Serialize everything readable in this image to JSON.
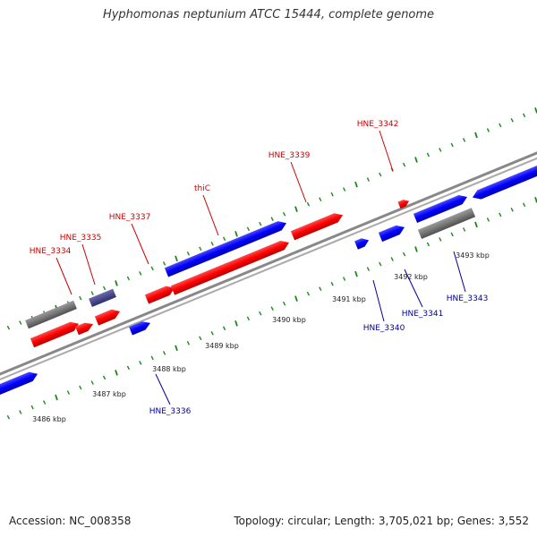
{
  "title": "Hyphomonas neptunium ATCC 15444, complete genome",
  "footer": {
    "accession": "Accession: NC_008358",
    "summary": "Topology: circular; Length: 3,705,021 bp; Genes: 3,552"
  },
  "colors": {
    "forward": "#ff0000",
    "reverse": "#0000ff",
    "other": "#777777",
    "other_alt": "#4b4b8f",
    "backbone": "#888888",
    "tick": "#1a8a1a",
    "label_forward": "#cc0000",
    "label_reverse": "#000099"
  },
  "kbp_labels": [
    "3486 kbp",
    "3487 kbp",
    "3488 kbp",
    "3489 kbp",
    "3490 kbp",
    "3491 kbp",
    "3492 kbp",
    "3493 kbp"
  ],
  "genes": [
    {
      "name": "HNE_3334",
      "strand": "forward"
    },
    {
      "name": "HNE_3335",
      "strand": "forward"
    },
    {
      "name": "HNE_3336",
      "strand": "reverse"
    },
    {
      "name": "HNE_3337",
      "strand": "forward"
    },
    {
      "name": "thiC",
      "strand": "forward"
    },
    {
      "name": "HNE_3339",
      "strand": "forward"
    },
    {
      "name": "HNE_3340",
      "strand": "reverse"
    },
    {
      "name": "HNE_3341",
      "strand": "reverse"
    },
    {
      "name": "HNE_3342",
      "strand": "forward"
    },
    {
      "name": "HNE_3343",
      "strand": "reverse"
    }
  ]
}
